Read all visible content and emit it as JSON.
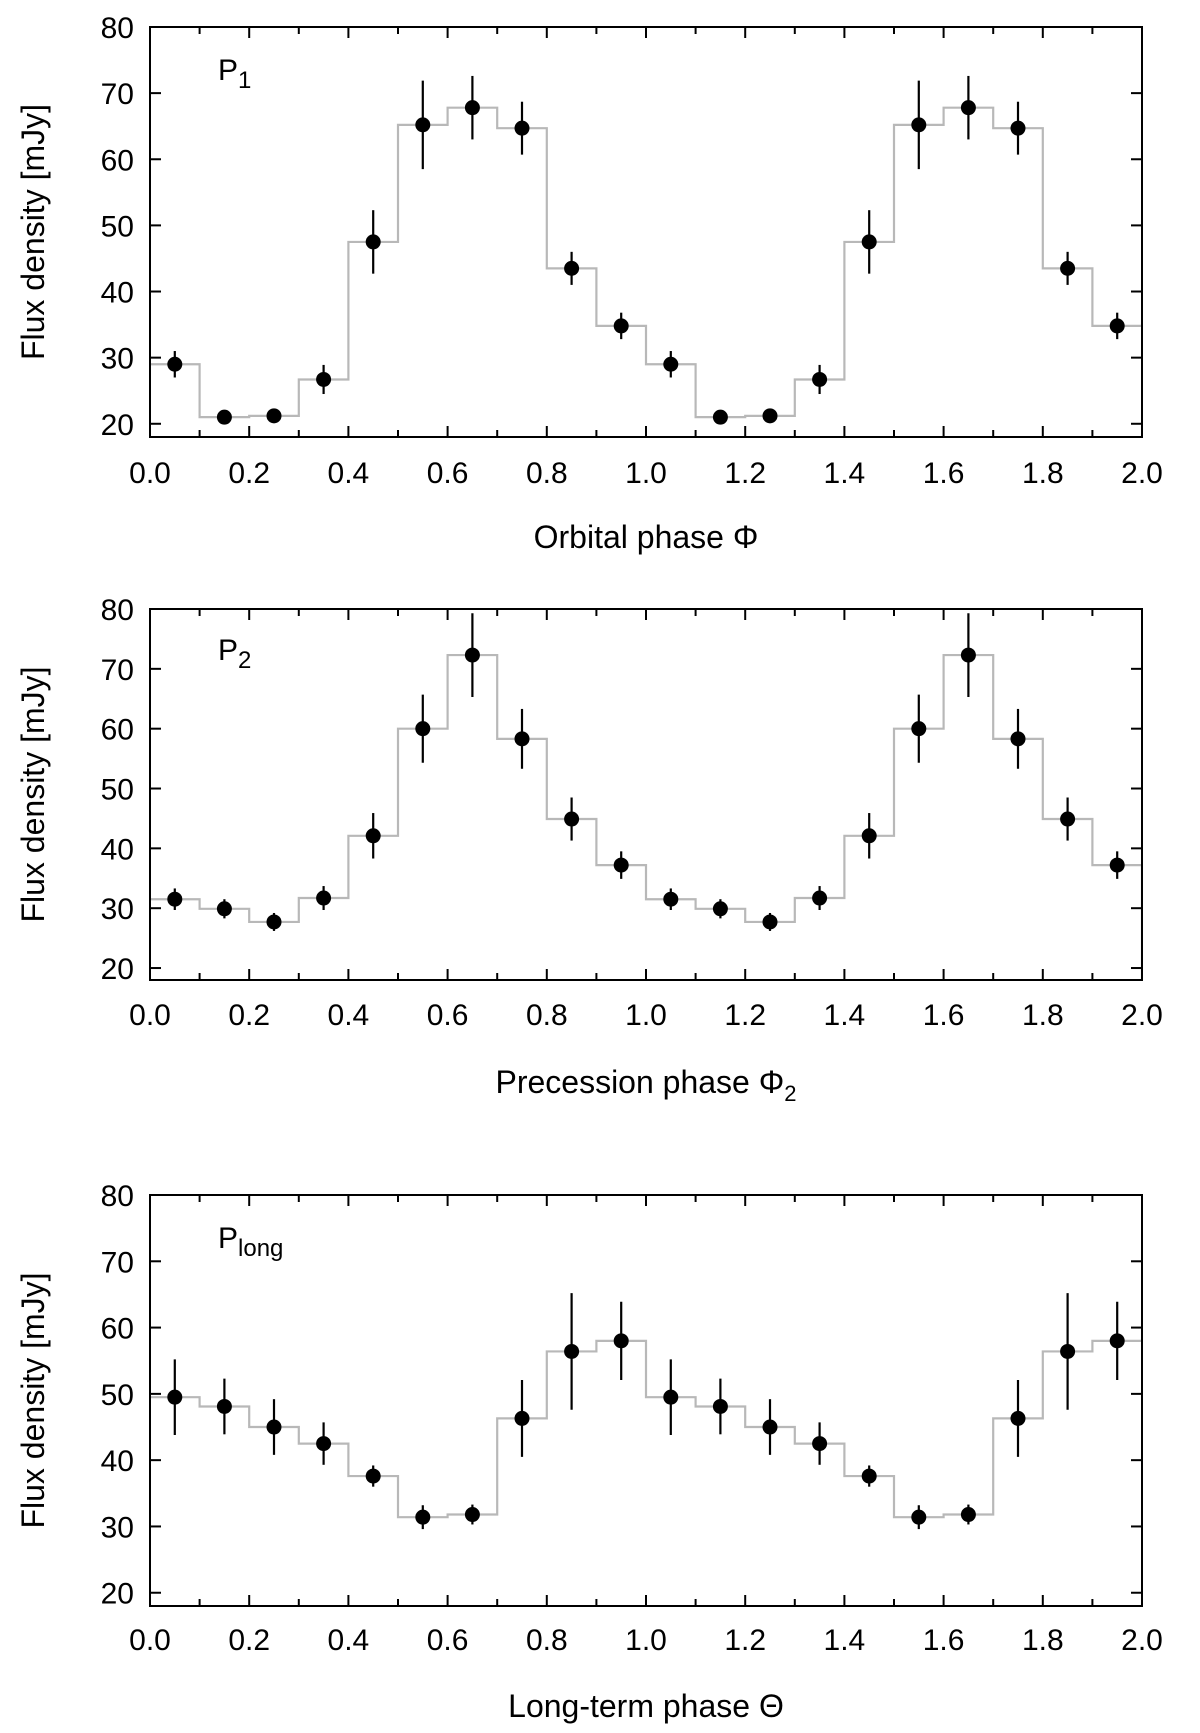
{
  "chart_data": [
    {
      "type": "scatter",
      "panel_label": {
        "main": "P",
        "sub": "1"
      },
      "xlabel": {
        "main": "Orbital phase Φ",
        "sub": ""
      },
      "ylabel": "Flux density [mJy]",
      "xlim": [
        0,
        2
      ],
      "ylim": [
        18,
        80
      ],
      "xticks": [
        "0.0",
        "0.2",
        "0.4",
        "0.6",
        "0.8",
        "1.0",
        "1.2",
        "1.4",
        "1.6",
        "1.8",
        "2.0"
      ],
      "yticks": [
        "20",
        "30",
        "40",
        "50",
        "60",
        "70",
        "80"
      ],
      "points": [
        {
          "x": 0.05,
          "y": 29,
          "err": 2
        },
        {
          "x": 0.15,
          "y": 21,
          "err": 0.5
        },
        {
          "x": 0.25,
          "y": 21.2,
          "err": 0.5
        },
        {
          "x": 0.35,
          "y": 26.7,
          "err": 2.2
        },
        {
          "x": 0.45,
          "y": 47.5,
          "err": 4.8
        },
        {
          "x": 0.55,
          "y": 65.2,
          "err": 6.7
        },
        {
          "x": 0.65,
          "y": 67.8,
          "err": 4.8
        },
        {
          "x": 0.75,
          "y": 64.7,
          "err": 4
        },
        {
          "x": 0.85,
          "y": 43.5,
          "err": 2.5
        },
        {
          "x": 0.95,
          "y": 34.8,
          "err": 2
        },
        {
          "x": 1.05,
          "y": 29,
          "err": 2
        },
        {
          "x": 1.15,
          "y": 21,
          "err": 0.5
        },
        {
          "x": 1.25,
          "y": 21.2,
          "err": 0.5
        },
        {
          "x": 1.35,
          "y": 26.7,
          "err": 2.2
        },
        {
          "x": 1.45,
          "y": 47.5,
          "err": 4.8
        },
        {
          "x": 1.55,
          "y": 65.2,
          "err": 6.7
        },
        {
          "x": 1.65,
          "y": 67.8,
          "err": 4.8
        },
        {
          "x": 1.75,
          "y": 64.7,
          "err": 4
        },
        {
          "x": 1.85,
          "y": 43.5,
          "err": 2.5
        },
        {
          "x": 1.95,
          "y": 34.8,
          "err": 2
        }
      ],
      "step_values": [
        29,
        21,
        21.2,
        26.7,
        47.5,
        65.2,
        67.8,
        64.7,
        43.5,
        34.8,
        29,
        21,
        21.2,
        26.7,
        47.5,
        65.2,
        67.8,
        64.7,
        43.5,
        34.8
      ],
      "colors": {
        "points": "#000000",
        "step": "#b8b8b8"
      }
    },
    {
      "type": "scatter",
      "panel_label": {
        "main": "P",
        "sub": "2"
      },
      "xlabel": {
        "main": "Precession phase Φ",
        "sub": "2"
      },
      "ylabel": "Flux density [mJy]",
      "xlim": [
        0,
        2
      ],
      "ylim": [
        18,
        80
      ],
      "xticks": [
        "0.0",
        "0.2",
        "0.4",
        "0.6",
        "0.8",
        "1.0",
        "1.2",
        "1.4",
        "1.6",
        "1.8",
        "2.0"
      ],
      "yticks": [
        "20",
        "30",
        "40",
        "50",
        "60",
        "70",
        "80"
      ],
      "points": [
        {
          "x": 0.05,
          "y": 31.5,
          "err": 1.8
        },
        {
          "x": 0.15,
          "y": 29.9,
          "err": 1.6
        },
        {
          "x": 0.25,
          "y": 27.7,
          "err": 1.5
        },
        {
          "x": 0.35,
          "y": 31.7,
          "err": 2
        },
        {
          "x": 0.45,
          "y": 42.1,
          "err": 3.8
        },
        {
          "x": 0.55,
          "y": 60,
          "err": 5.7
        },
        {
          "x": 0.65,
          "y": 72.3,
          "err": 7
        },
        {
          "x": 0.75,
          "y": 58.3,
          "err": 5
        },
        {
          "x": 0.85,
          "y": 44.9,
          "err": 3.6
        },
        {
          "x": 0.95,
          "y": 37.2,
          "err": 2.3
        },
        {
          "x": 1.05,
          "y": 31.5,
          "err": 1.8
        },
        {
          "x": 1.15,
          "y": 29.9,
          "err": 1.6
        },
        {
          "x": 1.25,
          "y": 27.7,
          "err": 1.5
        },
        {
          "x": 1.35,
          "y": 31.7,
          "err": 2
        },
        {
          "x": 1.45,
          "y": 42.1,
          "err": 3.8
        },
        {
          "x": 1.55,
          "y": 60,
          "err": 5.7
        },
        {
          "x": 1.65,
          "y": 72.3,
          "err": 7
        },
        {
          "x": 1.75,
          "y": 58.3,
          "err": 5
        },
        {
          "x": 1.85,
          "y": 44.9,
          "err": 3.6
        },
        {
          "x": 1.95,
          "y": 37.2,
          "err": 2.3
        }
      ],
      "step_values": [
        31.5,
        29.9,
        27.7,
        31.7,
        42.1,
        60,
        72.3,
        58.3,
        44.9,
        37.2,
        31.5,
        29.9,
        27.7,
        31.7,
        42.1,
        60,
        72.3,
        58.3,
        44.9,
        37.2
      ],
      "colors": {
        "points": "#000000",
        "step": "#b8b8b8"
      }
    },
    {
      "type": "scatter",
      "panel_label": {
        "main": "P",
        "sub": "long"
      },
      "xlabel": {
        "main": "Long-term phase Θ",
        "sub": ""
      },
      "ylabel": "Flux density [mJy]",
      "xlim": [
        0,
        2
      ],
      "ylim": [
        18,
        80
      ],
      "xticks": [
        "0.0",
        "0.2",
        "0.4",
        "0.6",
        "0.8",
        "1.0",
        "1.2",
        "1.4",
        "1.6",
        "1.8",
        "2.0"
      ],
      "yticks": [
        "20",
        "30",
        "40",
        "50",
        "60",
        "70",
        "80"
      ],
      "points": [
        {
          "x": 0.05,
          "y": 49.5,
          "err": 5.7
        },
        {
          "x": 0.15,
          "y": 48.1,
          "err": 4.2
        },
        {
          "x": 0.25,
          "y": 45,
          "err": 4.2
        },
        {
          "x": 0.35,
          "y": 42.5,
          "err": 3.2
        },
        {
          "x": 0.45,
          "y": 37.6,
          "err": 1.6
        },
        {
          "x": 0.55,
          "y": 31.4,
          "err": 1.8
        },
        {
          "x": 0.65,
          "y": 31.8,
          "err": 1.5
        },
        {
          "x": 0.75,
          "y": 46.3,
          "err": 5.8
        },
        {
          "x": 0.85,
          "y": 56.4,
          "err": 8.8
        },
        {
          "x": 0.95,
          "y": 58,
          "err": 5.9
        },
        {
          "x": 1.05,
          "y": 49.5,
          "err": 5.7
        },
        {
          "x": 1.15,
          "y": 48.1,
          "err": 4.2
        },
        {
          "x": 1.25,
          "y": 45,
          "err": 4.2
        },
        {
          "x": 1.35,
          "y": 42.5,
          "err": 3.2
        },
        {
          "x": 1.45,
          "y": 37.6,
          "err": 1.6
        },
        {
          "x": 1.55,
          "y": 31.4,
          "err": 1.8
        },
        {
          "x": 1.65,
          "y": 31.8,
          "err": 1.5
        },
        {
          "x": 1.75,
          "y": 46.3,
          "err": 5.8
        },
        {
          "x": 1.85,
          "y": 56.4,
          "err": 8.8
        },
        {
          "x": 1.95,
          "y": 58,
          "err": 5.9
        }
      ],
      "step_values": [
        49.5,
        48.1,
        45,
        42.5,
        37.6,
        31.4,
        31.8,
        46.3,
        56.4,
        58,
        49.5,
        48.1,
        45,
        42.5,
        37.6,
        31.4,
        31.8,
        46.3,
        56.4,
        58
      ],
      "colors": {
        "points": "#000000",
        "step": "#b8b8b8"
      }
    }
  ]
}
